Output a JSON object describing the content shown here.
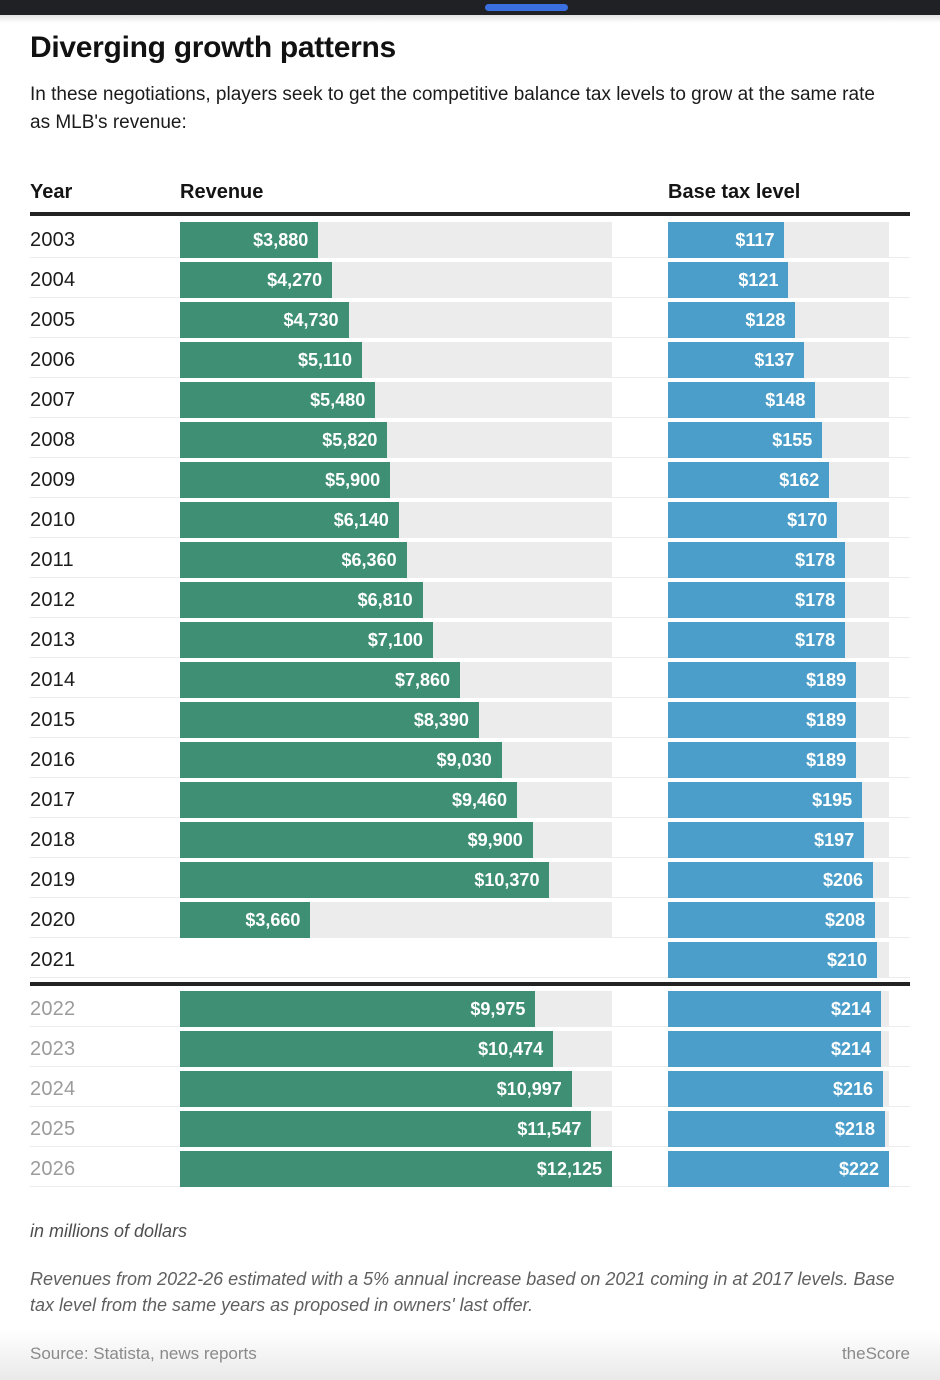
{
  "header": {
    "title": "Diverging growth patterns",
    "subtitle": "In these negotiations, players seek to get the competitive balance tax levels to grow at the same rate as MLB's revenue:"
  },
  "columns": {
    "year": "Year",
    "revenue": "Revenue",
    "tax": "Base tax level"
  },
  "colors": {
    "revenue_bar": "#3e8f74",
    "tax_bar": "#4a9ec9",
    "track": "#ececec",
    "topbar": "#1f2124",
    "progress_pill": "#3a6fe0"
  },
  "chart_data": {
    "type": "bar",
    "title": "Diverging growth patterns",
    "unit": "millions of dollars",
    "series": [
      {
        "name": "Revenue",
        "color": "#3e8f74",
        "axis_max": 12125
      },
      {
        "name": "Base tax level",
        "color": "#4a9ec9",
        "axis_max": 222
      }
    ],
    "rows": [
      {
        "year": "2003",
        "revenue": 3880,
        "revenue_label": "$3,880",
        "tax": 117,
        "tax_label": "$117",
        "estimated": false
      },
      {
        "year": "2004",
        "revenue": 4270,
        "revenue_label": "$4,270",
        "tax": 121,
        "tax_label": "$121",
        "estimated": false
      },
      {
        "year": "2005",
        "revenue": 4730,
        "revenue_label": "$4,730",
        "tax": 128,
        "tax_label": "$128",
        "estimated": false
      },
      {
        "year": "2006",
        "revenue": 5110,
        "revenue_label": "$5,110",
        "tax": 137,
        "tax_label": "$137",
        "estimated": false
      },
      {
        "year": "2007",
        "revenue": 5480,
        "revenue_label": "$5,480",
        "tax": 148,
        "tax_label": "$148",
        "estimated": false
      },
      {
        "year": "2008",
        "revenue": 5820,
        "revenue_label": "$5,820",
        "tax": 155,
        "tax_label": "$155",
        "estimated": false
      },
      {
        "year": "2009",
        "revenue": 5900,
        "revenue_label": "$5,900",
        "tax": 162,
        "tax_label": "$162",
        "estimated": false
      },
      {
        "year": "2010",
        "revenue": 6140,
        "revenue_label": "$6,140",
        "tax": 170,
        "tax_label": "$170",
        "estimated": false
      },
      {
        "year": "2011",
        "revenue": 6360,
        "revenue_label": "$6,360",
        "tax": 178,
        "tax_label": "$178",
        "estimated": false
      },
      {
        "year": "2012",
        "revenue": 6810,
        "revenue_label": "$6,810",
        "tax": 178,
        "tax_label": "$178",
        "estimated": false
      },
      {
        "year": "2013",
        "revenue": 7100,
        "revenue_label": "$7,100",
        "tax": 178,
        "tax_label": "$178",
        "estimated": false
      },
      {
        "year": "2014",
        "revenue": 7860,
        "revenue_label": "$7,860",
        "tax": 189,
        "tax_label": "$189",
        "estimated": false
      },
      {
        "year": "2015",
        "revenue": 8390,
        "revenue_label": "$8,390",
        "tax": 189,
        "tax_label": "$189",
        "estimated": false
      },
      {
        "year": "2016",
        "revenue": 9030,
        "revenue_label": "$9,030",
        "tax": 189,
        "tax_label": "$189",
        "estimated": false
      },
      {
        "year": "2017",
        "revenue": 9460,
        "revenue_label": "$9,460",
        "tax": 195,
        "tax_label": "$195",
        "estimated": false
      },
      {
        "year": "2018",
        "revenue": 9900,
        "revenue_label": "$9,900",
        "tax": 197,
        "tax_label": "$197",
        "estimated": false
      },
      {
        "year": "2019",
        "revenue": 10370,
        "revenue_label": "$10,370",
        "tax": 206,
        "tax_label": "$206",
        "estimated": false
      },
      {
        "year": "2020",
        "revenue": 3660,
        "revenue_label": "$3,660",
        "tax": 208,
        "tax_label": "$208",
        "estimated": false
      },
      {
        "year": "2021",
        "revenue": null,
        "revenue_label": "",
        "tax": 210,
        "tax_label": "$210",
        "estimated": false
      },
      {
        "year": "2022",
        "revenue": 9975,
        "revenue_label": "$9,975",
        "tax": 214,
        "tax_label": "$214",
        "estimated": true
      },
      {
        "year": "2023",
        "revenue": 10474,
        "revenue_label": "$10,474",
        "tax": 214,
        "tax_label": "$214",
        "estimated": true
      },
      {
        "year": "2024",
        "revenue": 10997,
        "revenue_label": "$10,997",
        "tax": 216,
        "tax_label": "$216",
        "estimated": true
      },
      {
        "year": "2025",
        "revenue": 11547,
        "revenue_label": "$11,547",
        "tax": 218,
        "tax_label": "$218",
        "estimated": true
      },
      {
        "year": "2026",
        "revenue": 12125,
        "revenue_label": "$12,125",
        "tax": 222,
        "tax_label": "$222",
        "estimated": true
      }
    ]
  },
  "footnotes": {
    "unit": "in millions of dollars",
    "note": "Revenues from 2022-26 estimated with a 5% annual increase based on 2021 coming in at 2017 levels. Base tax level from the same years as proposed in owners' last offer.",
    "source": "Source: Statista, news reports",
    "brand": "theScore"
  }
}
